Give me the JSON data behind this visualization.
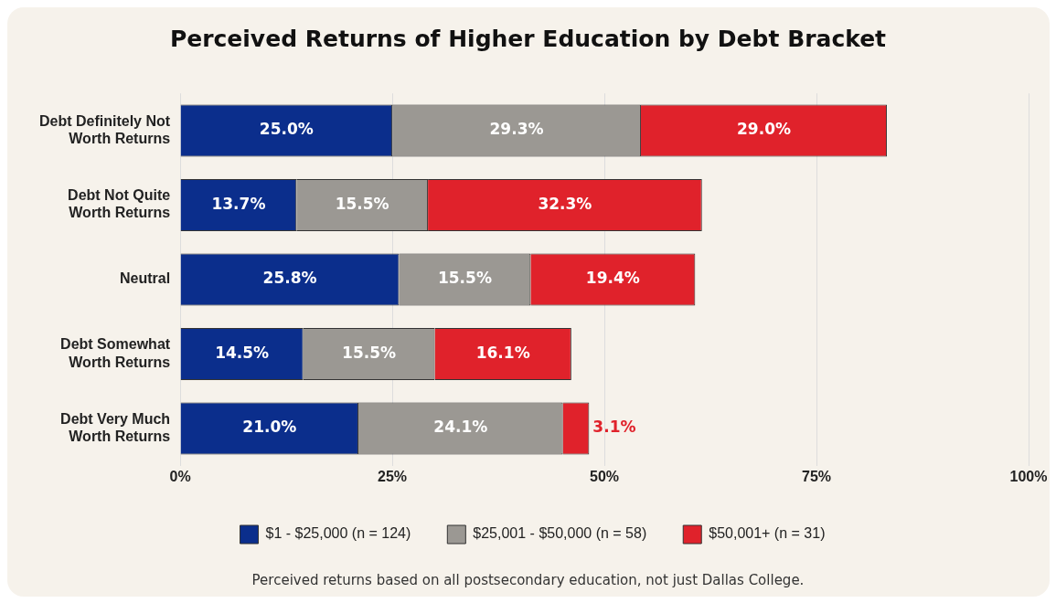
{
  "chart_data": {
    "type": "bar",
    "orientation": "horizontal",
    "stacked": true,
    "title": "Perceived Returns of Higher Education by Debt Bracket",
    "categories": [
      "Debt Definitely Not Worth Returns",
      "Debt Not Quite Worth Returns",
      "Neutral",
      "Debt Somewhat Worth Returns",
      "Debt Very Much Worth Returns"
    ],
    "series": [
      {
        "name": "$1 - $25,000 (n = 124)",
        "color": "#0b2e8c",
        "values": [
          25.0,
          13.7,
          25.8,
          14.5,
          21.0
        ],
        "value_labels": [
          "25.0%",
          "13.7%",
          "25.8%",
          "14.5%",
          "21.0%"
        ]
      },
      {
        "name": "$25,001 - $50,000 (n = 58)",
        "color": "#9b9893",
        "values": [
          29.3,
          15.5,
          15.5,
          15.5,
          24.1
        ],
        "value_labels": [
          "29.3%",
          "15.5%",
          "15.5%",
          "15.5%",
          "24.1%"
        ]
      },
      {
        "name": "$50,001+ (n = 31)",
        "color": "#e0222b",
        "values": [
          29.0,
          32.3,
          19.4,
          16.1,
          3.1
        ],
        "value_labels": [
          "29.0%",
          "32.3%",
          "19.4%",
          "16.1%",
          "3.1%"
        ]
      }
    ],
    "xlim": [
      0,
      100
    ],
    "xticks": [
      {
        "value": 0,
        "label": "0%"
      },
      {
        "value": 25,
        "label": "25%"
      },
      {
        "value": 50,
        "label": "50%"
      },
      {
        "value": 75,
        "label": "75%"
      },
      {
        "value": 100,
        "label": "100%"
      }
    ],
    "grid": "x",
    "legend": "bottom",
    "annotations": [
      "Perceived returns based on all postsecondary education, not just Dallas College."
    ]
  }
}
